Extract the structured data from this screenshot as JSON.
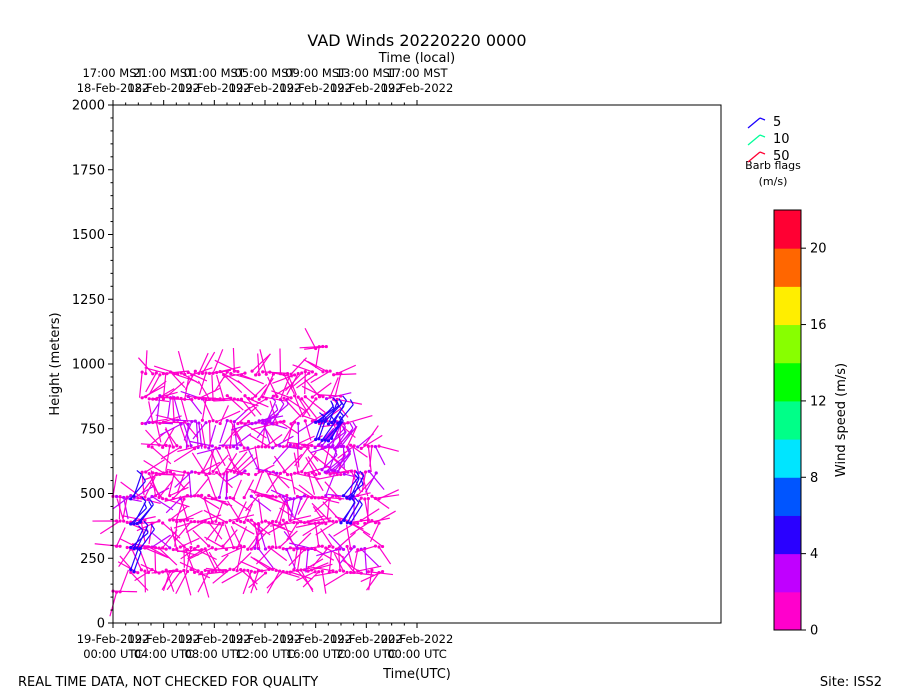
{
  "chart_data": {
    "type": "scatter",
    "title": "VAD Winds 20220220 0000",
    "top_axis_label": "Time (local)",
    "xlabel": "Time(UTC)",
    "ylabel": "Height (meters)",
    "xlim_hours": [
      0,
      48
    ],
    "ylim": [
      0,
      2000
    ],
    "y_ticks": [
      0,
      250,
      500,
      750,
      1000,
      1250,
      1500,
      1750,
      2000
    ],
    "x_ticks_utc": [
      {
        "hour": 0,
        "line1": "19-Feb-2022",
        "line2": "00:00 UTC"
      },
      {
        "hour": 4,
        "line1": "19-Feb-2022",
        "line2": "04:00 UTC"
      },
      {
        "hour": 8,
        "line1": "19-Feb-2022",
        "line2": "08:00 UTC"
      },
      {
        "hour": 12,
        "line1": "19-Feb-2022",
        "line2": "12:00 UTC"
      },
      {
        "hour": 16,
        "line1": "19-Feb-2022",
        "line2": "16:00 UTC"
      },
      {
        "hour": 20,
        "line1": "19-Feb-2022",
        "line2": "20:00 UTC"
      },
      {
        "hour": 24,
        "line1": "20-Feb-2022",
        "line2": "00:00 UTC"
      }
    ],
    "x_ticks_local": [
      {
        "hour": 0,
        "line1": "17:00 MST",
        "line2": "18-Feb-2022"
      },
      {
        "hour": 4,
        "line1": "21:00 MST",
        "line2": "18-Feb-2022"
      },
      {
        "hour": 8,
        "line1": "01:00 MST",
        "line2": "19-Feb-2022"
      },
      {
        "hour": 12,
        "line1": "05:00 MST",
        "line2": "19-Feb-2022"
      },
      {
        "hour": 16,
        "line1": "09:00 MST",
        "line2": "19-Feb-2022"
      },
      {
        "hour": 20,
        "line1": "13:00 MST",
        "line2": "19-Feb-2022"
      },
      {
        "hour": 24,
        "line1": "17:00 MST",
        "line2": "19-Feb-2022"
      }
    ],
    "barb_legend": {
      "title_line1": "Barb flags",
      "title_line2": "(m/s)",
      "items": [
        {
          "label": "5",
          "color": "#1a00ff"
        },
        {
          "label": "10",
          "color": "#00ff99"
        },
        {
          "label": "50",
          "color": "#ff0033"
        }
      ]
    },
    "colorbar": {
      "label": "Wind speed (m/s)",
      "range": [
        0,
        22
      ],
      "tick_values": [
        0,
        4,
        8,
        12,
        16,
        20
      ],
      "tick_labels": [
        "0",
        "4",
        "8",
        "12",
        "16",
        "20"
      ],
      "colors": [
        "#ff00cc",
        "#c000ff",
        "#2a00ff",
        "#0055ff",
        "#00e5ff",
        "#00ff88",
        "#00ff00",
        "#88ff00",
        "#ffee00",
        "#ff6600",
        "#ff0033"
      ]
    },
    "levels_m": [
      125,
      200,
      290,
      390,
      485,
      580,
      680,
      775,
      870,
      965,
      1060
    ],
    "segments": [
      {
        "level": 125,
        "start": 0.0,
        "end": 0.6,
        "speed": 1.5
      },
      {
        "level": 200,
        "start": 1.4,
        "end": 21.5,
        "speed": 1.2
      },
      {
        "level": 290,
        "start": 0.0,
        "end": 21.5,
        "speed": 1.3
      },
      {
        "level": 390,
        "start": 0.0,
        "end": 21.2,
        "speed": 1.2
      },
      {
        "level": 485,
        "start": 0.0,
        "end": 21.2,
        "speed": 1.4
      },
      {
        "level": 580,
        "start": 2.3,
        "end": 21.2,
        "speed": 1.3
      },
      {
        "level": 680,
        "start": 2.8,
        "end": 21.2,
        "speed": 1.4
      },
      {
        "level": 775,
        "start": 2.3,
        "end": 18.6,
        "speed": 1.4
      },
      {
        "level": 870,
        "start": 2.3,
        "end": 18.0,
        "speed": 1.3
      },
      {
        "level": 965,
        "start": 2.3,
        "end": 18.0,
        "speed": 1.2
      },
      {
        "level": 1060,
        "start": 16.0,
        "end": 17.0,
        "speed": 1.2
      }
    ],
    "strong_patches": [
      {
        "level": 200,
        "start": 1.4,
        "end": 1.8,
        "speed": 4.5
      },
      {
        "level": 290,
        "start": 1.4,
        "end": 2.3,
        "speed": 5.0
      },
      {
        "level": 390,
        "start": 1.4,
        "end": 2.3,
        "speed": 4.5
      },
      {
        "level": 485,
        "start": 1.4,
        "end": 1.8,
        "speed": 4.5
      },
      {
        "level": 390,
        "start": 18.0,
        "end": 19.0,
        "speed": 5.0
      },
      {
        "level": 485,
        "start": 18.2,
        "end": 19.0,
        "speed": 5.0
      },
      {
        "level": 585,
        "start": 16.5,
        "end": 18.0,
        "speed": 3.5
      },
      {
        "level": 680,
        "start": 16.5,
        "end": 18.2,
        "speed": 3.5
      },
      {
        "level": 710,
        "start": 16.0,
        "end": 17.3,
        "speed": 5.0
      },
      {
        "level": 775,
        "start": 16.0,
        "end": 17.8,
        "speed": 5.0
      },
      {
        "level": 775,
        "start": 11.8,
        "end": 12.8,
        "speed": 3.5
      }
    ],
    "footer_left": "REAL TIME DATA, NOT CHECKED FOR QUALITY",
    "footer_right": "Site: ISS2"
  }
}
